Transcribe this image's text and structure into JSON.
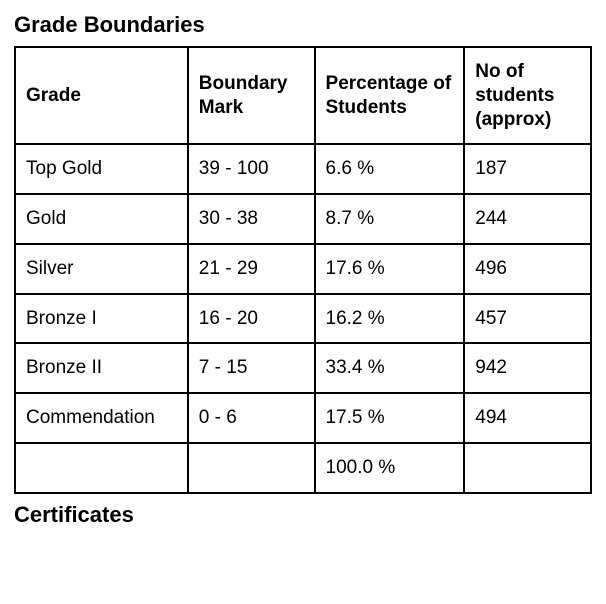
{
  "title_top": "Grade Boundaries",
  "title_bottom": "Certificates",
  "table": {
    "columns": [
      "Grade",
      "Boundary Mark",
      "Percentage of Students",
      "No of students (approx)"
    ],
    "rows": [
      [
        "Top Gold",
        "39 - 100",
        "6.6 %",
        "187"
      ],
      [
        "Gold",
        "30 - 38",
        "8.7 %",
        "244"
      ],
      [
        "Silver",
        "21 - 29",
        "17.6 %",
        "496"
      ],
      [
        "Bronze I",
        "16 - 20",
        "16.2 %",
        "457"
      ],
      [
        "Bronze II",
        "7 - 15",
        "33.4 %",
        "942"
      ],
      [
        "Commendation",
        "0 - 6",
        "17.5 %",
        "494"
      ],
      [
        "",
        "",
        "100.0 %",
        ""
      ]
    ]
  }
}
